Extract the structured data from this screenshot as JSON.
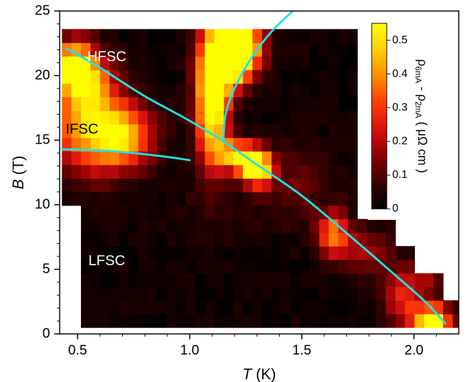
{
  "chart_data": {
    "type": "heatmap",
    "title": "",
    "xlabel": {
      "symbol": "T",
      "unit": " (K)"
    },
    "ylabel": {
      "symbol": "B",
      "unit": " (T)"
    },
    "xlim": [
      0.42,
      2.2
    ],
    "ylim": [
      0,
      25
    ],
    "xticks": [
      0.5,
      1.0,
      1.5,
      2.0
    ],
    "xtick_labels": [
      "0.5",
      "1.0",
      "1.5",
      "2.0"
    ],
    "yticks": [
      0,
      5,
      10,
      15,
      20,
      25
    ],
    "ytick_labels": [
      "0",
      "5",
      "10",
      "15",
      "20",
      "25"
    ],
    "colorbar": {
      "label_parts": [
        "ρ",
        "6mA",
        " - ρ",
        "2mA",
        " ( μΩ cm )"
      ],
      "range": [
        0,
        0.55
      ],
      "ticks": [
        0,
        0.1,
        0.2,
        0.3,
        0.4,
        0.5
      ],
      "tick_labels": [
        "0",
        "0.1",
        "0.2",
        "0.3",
        "0.4",
        "0.5"
      ],
      "colormap": [
        "#000000",
        "#3a0000",
        "#8b0000",
        "#d81010",
        "#ff3d00",
        "#ff8a00",
        "#ffd000",
        "#ffff00"
      ]
    },
    "grid": {
      "t_step": 0.0425,
      "b_step": 1.05,
      "t_start": 0.43,
      "b_start": 0.5,
      "boundary": {
        "t_min_high_field": 0.43,
        "t_min_low_field": 0.51,
        "low_field_cutoff_b": 10.4,
        "b_top": 23.5,
        "edge": [
          [
            0.43,
            23.5
          ],
          [
            1.75,
            23.5
          ],
          [
            1.75,
            9.0
          ],
          [
            1.9,
            9.0
          ],
          [
            1.9,
            7.0
          ],
          [
            2.02,
            7.0
          ],
          [
            2.02,
            5.0
          ],
          [
            2.12,
            5.0
          ],
          [
            2.12,
            3.0
          ],
          [
            2.2,
            3.0
          ],
          [
            2.2,
            0.5
          ]
        ]
      },
      "hotspots": [
        {
          "t": 0.55,
          "b": 16.0,
          "st": 0.14,
          "sb": 2.4,
          "amp": 0.38
        },
        {
          "t": 0.7,
          "b": 15.2,
          "st": 0.1,
          "sb": 1.6,
          "amp": 0.32
        },
        {
          "t": 0.48,
          "b": 20.8,
          "st": 0.06,
          "sb": 1.4,
          "amp": 0.5
        },
        {
          "t": 0.56,
          "b": 19.5,
          "st": 0.07,
          "sb": 1.6,
          "amp": 0.3
        },
        {
          "t": 1.1,
          "b": 18.5,
          "st": 0.05,
          "sb": 3.6,
          "amp": 0.65
        },
        {
          "t": 1.22,
          "b": 22.3,
          "st": 0.07,
          "sb": 1.4,
          "amp": 0.65
        },
        {
          "t": 1.18,
          "b": 21.0,
          "st": 0.06,
          "sb": 1.5,
          "amp": 0.45
        },
        {
          "t": 1.27,
          "b": 13.3,
          "st": 0.05,
          "sb": 0.9,
          "amp": 0.6
        },
        {
          "t": 1.32,
          "b": 12.6,
          "st": 0.04,
          "sb": 0.9,
          "amp": 0.35
        },
        {
          "t": 1.18,
          "b": 14.0,
          "st": 0.05,
          "sb": 0.8,
          "amp": 0.3
        },
        {
          "t": 1.64,
          "b": 7.8,
          "st": 0.05,
          "sb": 1.2,
          "amp": 0.35
        },
        {
          "t": 1.78,
          "b": 6.5,
          "st": 0.08,
          "sb": 1.2,
          "amp": 0.16
        },
        {
          "t": 1.95,
          "b": 3.0,
          "st": 0.06,
          "sb": 1.6,
          "amp": 0.25
        },
        {
          "t": 2.08,
          "b": 1.1,
          "st": 0.06,
          "sb": 0.8,
          "amp": 0.6
        },
        {
          "t": 2.06,
          "b": 4.2,
          "st": 0.05,
          "sb": 1.0,
          "amp": 0.12
        },
        {
          "t": 1.48,
          "b": 12.0,
          "st": 0.1,
          "sb": 2.0,
          "amp": 0.1
        },
        {
          "t": 1.2,
          "b": 9.5,
          "st": 0.25,
          "sb": 1.5,
          "amp": 0.03
        }
      ]
    },
    "boundaries": [
      {
        "name": "",
        "color": "#22e0e6",
        "points": [
          [
            0.45,
            22.1
          ],
          [
            0.6,
            20.6
          ],
          [
            0.8,
            18.4
          ],
          [
            1.0,
            16.5
          ],
          [
            1.15,
            14.9
          ],
          [
            1.3,
            13.1
          ],
          [
            1.5,
            10.7
          ],
          [
            1.7,
            7.8
          ],
          [
            1.9,
            4.8
          ],
          [
            2.05,
            2.5
          ],
          [
            2.14,
            0.8
          ]
        ]
      },
      {
        "name": "",
        "color": "#22e0e6",
        "points": [
          [
            0.43,
            14.3
          ],
          [
            0.6,
            14.2
          ],
          [
            0.75,
            14.0
          ],
          [
            0.9,
            13.7
          ],
          [
            1.0,
            13.45
          ]
        ]
      },
      {
        "name": "",
        "color": "#22e0e6",
        "points": [
          [
            1.15,
            14.9
          ],
          [
            1.16,
            17.0
          ],
          [
            1.2,
            19.0
          ],
          [
            1.28,
            21.5
          ],
          [
            1.37,
            23.5
          ],
          [
            1.46,
            25.0
          ]
        ]
      }
    ],
    "region_labels": [
      {
        "text": "HFSC",
        "t": 0.63,
        "b": 21.4,
        "color": "#ffffff"
      },
      {
        "text": "IFSC",
        "t": 0.52,
        "b": 15.8,
        "color": "#000000"
      },
      {
        "text": "LFSC",
        "t": 0.63,
        "b": 5.6,
        "color": "#ffffff"
      }
    ]
  }
}
